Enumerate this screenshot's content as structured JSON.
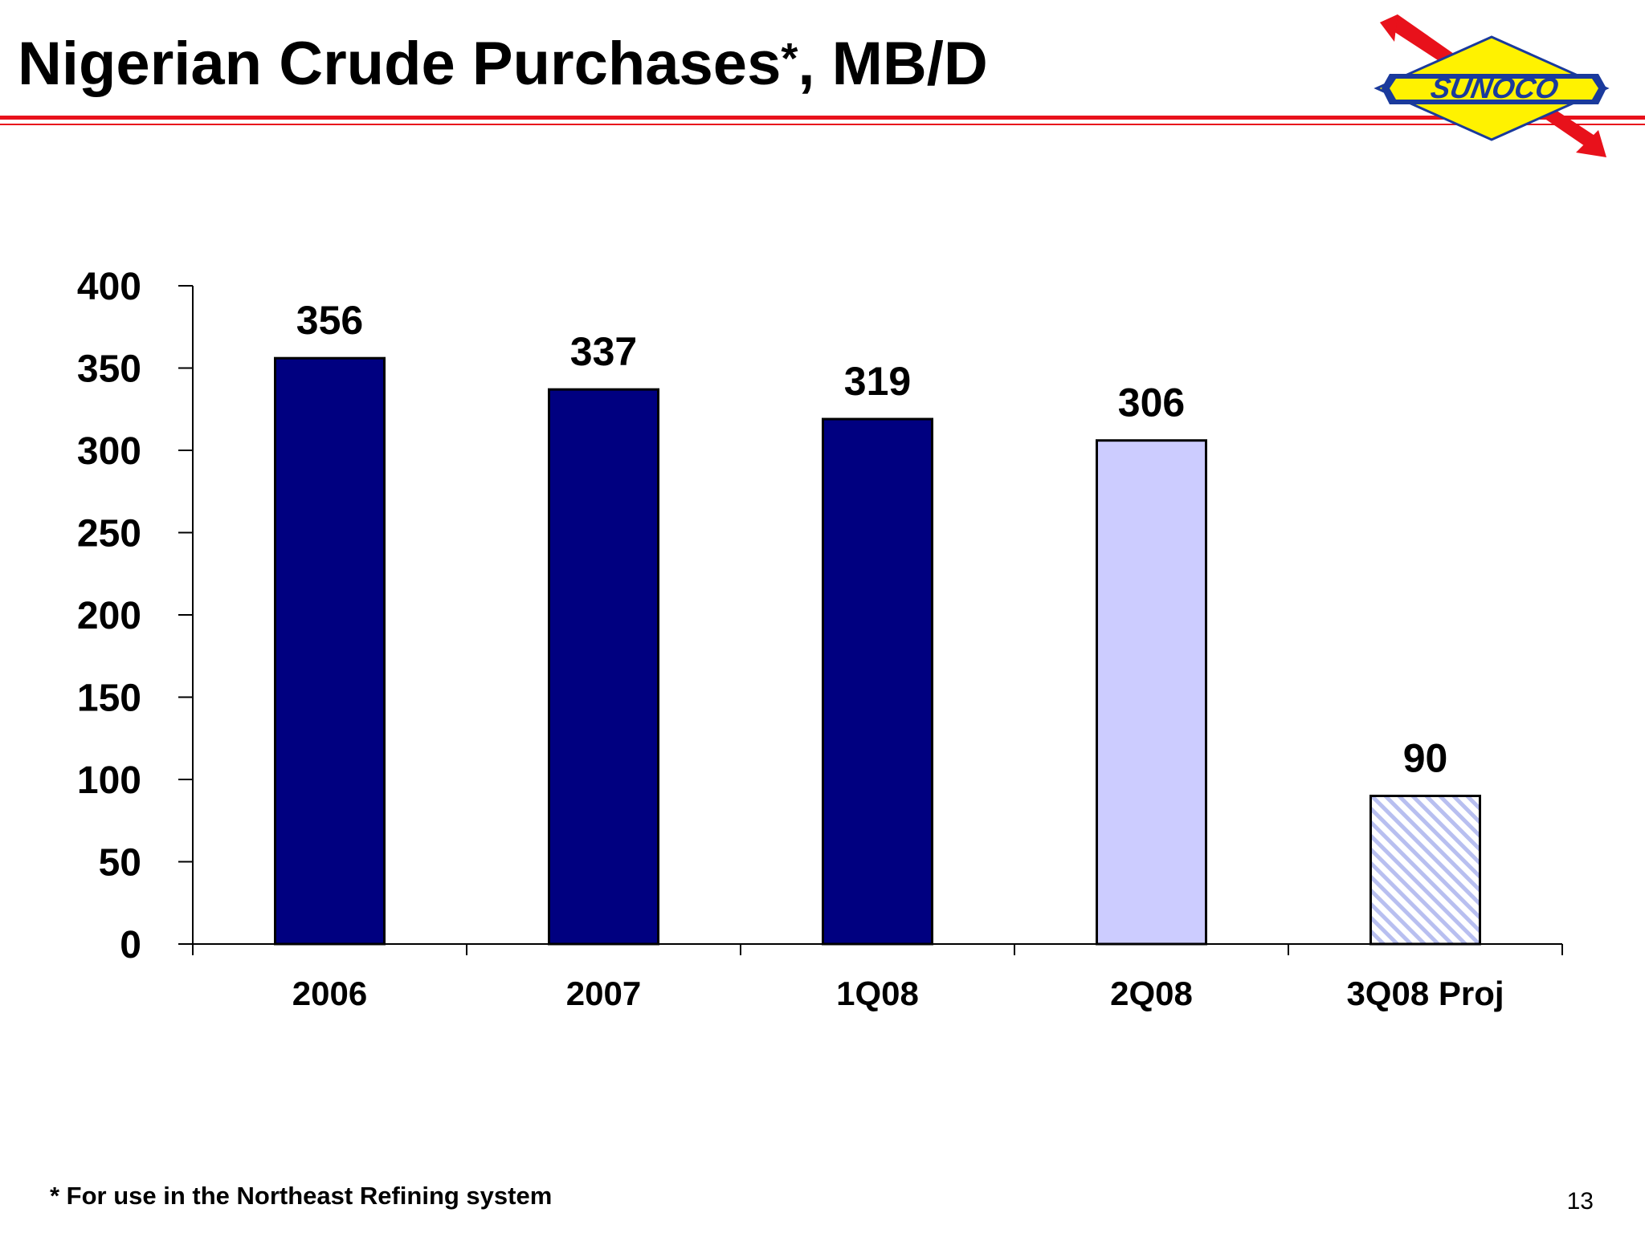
{
  "slide": {
    "title_main": "Nigerian Crude Purchases",
    "title_asterisk": "*",
    "title_suffix": ", MB/D",
    "footnote": "* For use in the Northeast Refining system",
    "page_number": "13",
    "logo_text": "SUNOCO",
    "colors": {
      "rule": "#e8111b",
      "logo_yellow": "#fff200",
      "logo_blue": "#1a3a9c",
      "logo_red": "#e8111b"
    }
  },
  "chart_data": {
    "type": "bar",
    "title": "Nigerian Crude Purchases*, MB/D",
    "xlabel": "",
    "ylabel": "",
    "ylim": [
      0,
      400
    ],
    "yticks": [
      0,
      50,
      100,
      150,
      200,
      250,
      300,
      350,
      400
    ],
    "ytick_labels": [
      "0",
      "50",
      "100",
      "150",
      "200",
      "250",
      "300",
      "350",
      "400"
    ],
    "categories": [
      "2006",
      "2007",
      "1Q08",
      "2Q08",
      "3Q08 Proj"
    ],
    "values": [
      356,
      337,
      319,
      306,
      90
    ],
    "data_labels": [
      "356",
      "337",
      "319",
      "306",
      "90"
    ],
    "bar_styles": [
      "solid",
      "solid",
      "solid",
      "solid",
      "hatched"
    ],
    "bar_colors": [
      "#000080",
      "#000080",
      "#000080",
      "#ccccff",
      "#b8bff0"
    ],
    "grid": false,
    "legend": "none"
  }
}
